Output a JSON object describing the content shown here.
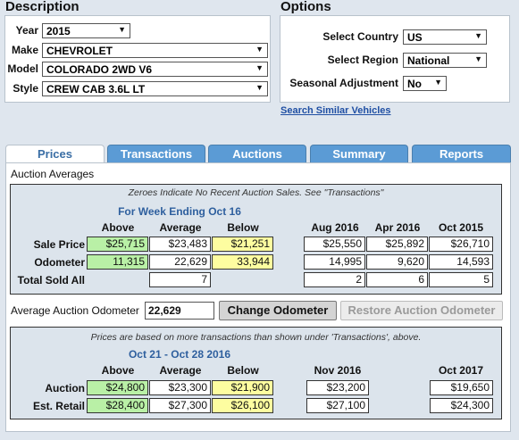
{
  "description": {
    "title": "Description",
    "year": {
      "label": "Year",
      "value": "2015"
    },
    "make": {
      "label": "Make",
      "value": "CHEVROLET"
    },
    "model": {
      "label": "Model",
      "value": "COLORADO 2WD V6"
    },
    "style": {
      "label": "Style",
      "value": "CREW CAB 3.6L LT"
    }
  },
  "options": {
    "title": "Options",
    "country": {
      "label": "Select Country",
      "value": "US"
    },
    "region": {
      "label": "Select Region",
      "value": "National"
    },
    "seasonal": {
      "label": "Seasonal Adjustment",
      "value": "No"
    },
    "similar_link": "Search Similar Vehicles"
  },
  "tabs": [
    "Prices",
    "Transactions",
    "Auctions",
    "Summary",
    "Reports"
  ],
  "auction_averages": {
    "title": "Auction Averages",
    "note": "Zeroes Indicate No Recent Auction Sales. See \"Transactions\"",
    "week_header": "For Week Ending Oct 16",
    "columns": [
      "Above",
      "Average",
      "Below",
      "Aug 2016",
      "Apr 2016",
      "Oct 2015"
    ],
    "rows": [
      {
        "label": "Sale Price",
        "values": [
          "$25,715",
          "$23,483",
          "$21,251",
          "$25,550",
          "$25,892",
          "$26,710"
        ]
      },
      {
        "label": "Odometer",
        "values": [
          "11,315",
          "22,629",
          "33,944",
          "14,995",
          "9,620",
          "14,593"
        ]
      },
      {
        "label": "Total Sold All",
        "values": [
          "",
          "7",
          "",
          "2",
          "6",
          "5"
        ]
      }
    ]
  },
  "odometer": {
    "label": "Average Auction Odometer",
    "value": "22,629",
    "change_button": "Change Odometer",
    "restore_button": "Restore Auction Odometer"
  },
  "forecast": {
    "note": "Prices are based on more transactions than shown under 'Transactions', above.",
    "period_header": "Oct 21 - Oct 28 2016",
    "columns": [
      "Above",
      "Average",
      "Below",
      "Nov 2016",
      "Oct 2017"
    ],
    "rows": [
      {
        "label": "Auction",
        "values": [
          "$24,800",
          "$23,300",
          "$21,900",
          "$23,200",
          "$19,650"
        ]
      },
      {
        "label": "Est. Retail",
        "values": [
          "$28,400",
          "$27,300",
          "$26,100",
          "$27,100",
          "$24,300"
        ]
      }
    ]
  },
  "colors": {
    "above": "#b9f0a6",
    "below": "#fdfda0",
    "tab": "#5b9bd5",
    "header_blue": "#2e5f9e",
    "link": "#1f4fa3"
  }
}
